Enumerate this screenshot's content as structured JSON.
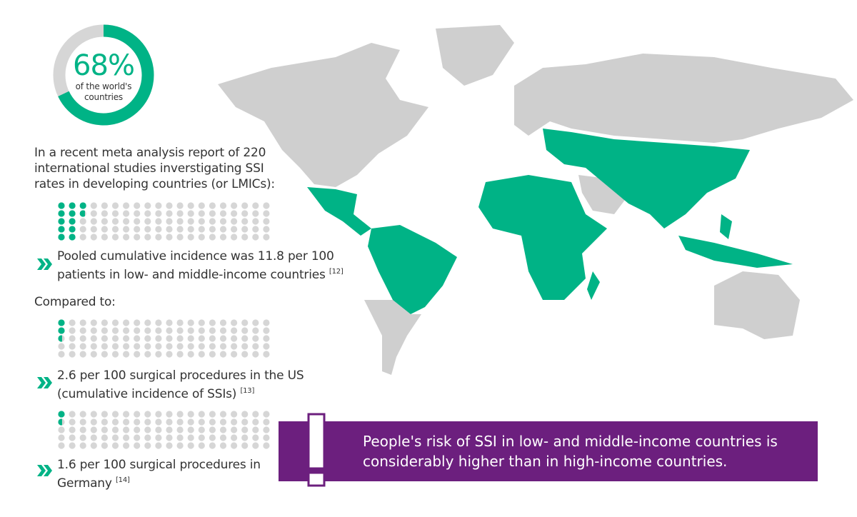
{
  "donut": {
    "value": 68,
    "label": "68%",
    "caption_lines": [
      "of the world's",
      "countries"
    ]
  },
  "intro": "In a recent meta analysis report of 220 international studies inverstigating SSI rates in developing countries (or LMICs):",
  "compared": "Compared to:",
  "items": [
    {
      "per_100": 11.8,
      "text": "Pooled cumulative incidence was 11.8 per 100 patients in low- and middle-income countries",
      "ref": "[12]"
    },
    {
      "per_100": 2.6,
      "text": "2.6 per 100 surgical procedures in the US (cumulative incidence of SSIs)",
      "ref": "[13]"
    },
    {
      "per_100": 1.6,
      "text": "1.6 per 100 surgical procedures in Germany",
      "ref": "[14]"
    }
  ],
  "callout": "People's risk of SSI in low- and middle-income countries is considerably higher than in high-income countries."
}
